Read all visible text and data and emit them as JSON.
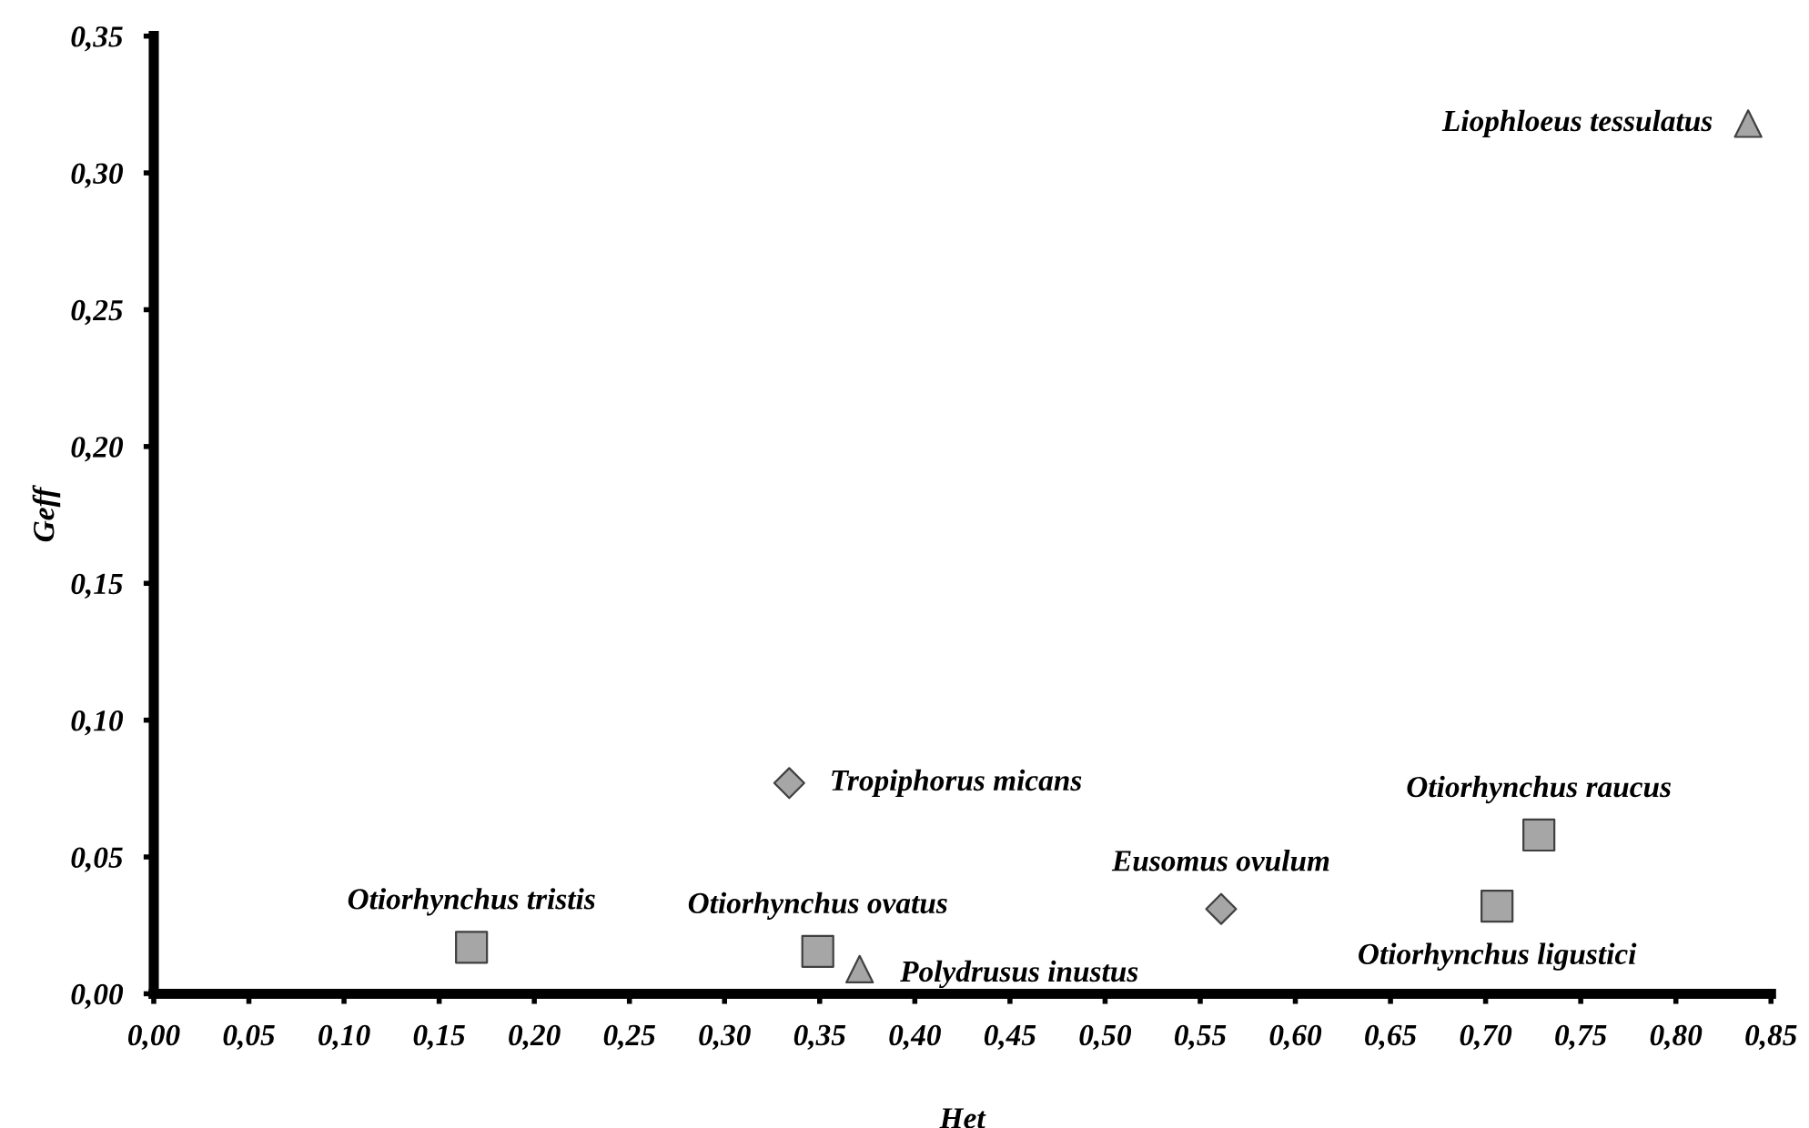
{
  "chart_data": {
    "type": "scatter",
    "xlabel": "Het",
    "ylabel": "Geff",
    "series": [
      {
        "marker": "square",
        "color": "#a6a6a6",
        "x": [
          0.167,
          0.349,
          0.706,
          0.728
        ],
        "values": [
          0.017,
          0.0155,
          0.032,
          0.058
        ]
      },
      {
        "marker": "diamond",
        "color": "#a6a6a6",
        "x": [
          0.334,
          0.561
        ],
        "values": [
          0.077,
          0.031
        ]
      },
      {
        "marker": "triangle",
        "color": "#a6a6a6",
        "x": [
          0.371,
          0.838
        ],
        "values": [
          0.009,
          0.318
        ]
      }
    ],
    "annotations": [
      {
        "text": "Otiorhynchus tristis",
        "x": 0.167,
        "y": 0.017
      },
      {
        "text": "Otiorhynchus ovatus",
        "x": 0.349,
        "y": 0.0155
      },
      {
        "text": "Otiorhynchus ligustici",
        "x": 0.706,
        "y": 0.032
      },
      {
        "text": "Otiorhynchus raucus",
        "x": 0.728,
        "y": 0.058
      },
      {
        "text": "Tropiphorus micans",
        "x": 0.334,
        "y": 0.077
      },
      {
        "text": "Eusomus ovulum",
        "x": 0.561,
        "y": 0.031
      },
      {
        "text": "Polydrusus inustus",
        "x": 0.371,
        "y": 0.009
      },
      {
        "text": "Liophloeus tessulatus",
        "x": 0.838,
        "y": 0.318
      }
    ],
    "xlim": [
      0,
      0.85
    ],
    "ylim": [
      0,
      0.35
    ],
    "xticks": [
      {
        "value": 0,
        "label": "0,00"
      },
      {
        "value": 0.05,
        "label": "0,05"
      },
      {
        "value": 0.1,
        "label": "0,10"
      },
      {
        "value": 0.15,
        "label": "0,15"
      },
      {
        "value": 0.2,
        "label": "0,20"
      },
      {
        "value": 0.25,
        "label": "0,25"
      },
      {
        "value": 0.3,
        "label": "0,30"
      },
      {
        "value": 0.35,
        "label": "0,35"
      },
      {
        "value": 0.4,
        "label": "0,40"
      },
      {
        "value": 0.45,
        "label": "0,45"
      },
      {
        "value": 0.5,
        "label": "0,50"
      },
      {
        "value": 0.55,
        "label": "0,55"
      },
      {
        "value": 0.6,
        "label": "0,60"
      },
      {
        "value": 0.65,
        "label": "0,65"
      },
      {
        "value": 0.7,
        "label": "0,70"
      },
      {
        "value": 0.75,
        "label": "0,75"
      },
      {
        "value": 0.8,
        "label": "0,80"
      },
      {
        "value": 0.85,
        "label": "0,85"
      }
    ],
    "yticks": [
      {
        "value": 0,
        "label": "0,00"
      },
      {
        "value": 0.05,
        "label": "0,05"
      },
      {
        "value": 0.1,
        "label": "0,10"
      },
      {
        "value": 0.15,
        "label": "0,15"
      },
      {
        "value": 0.2,
        "label": "0,20"
      },
      {
        "value": 0.25,
        "label": "0,25"
      },
      {
        "value": 0.3,
        "label": "0,30"
      },
      {
        "value": 0.35,
        "label": "0,35"
      }
    ],
    "grid": false,
    "legend": false
  }
}
